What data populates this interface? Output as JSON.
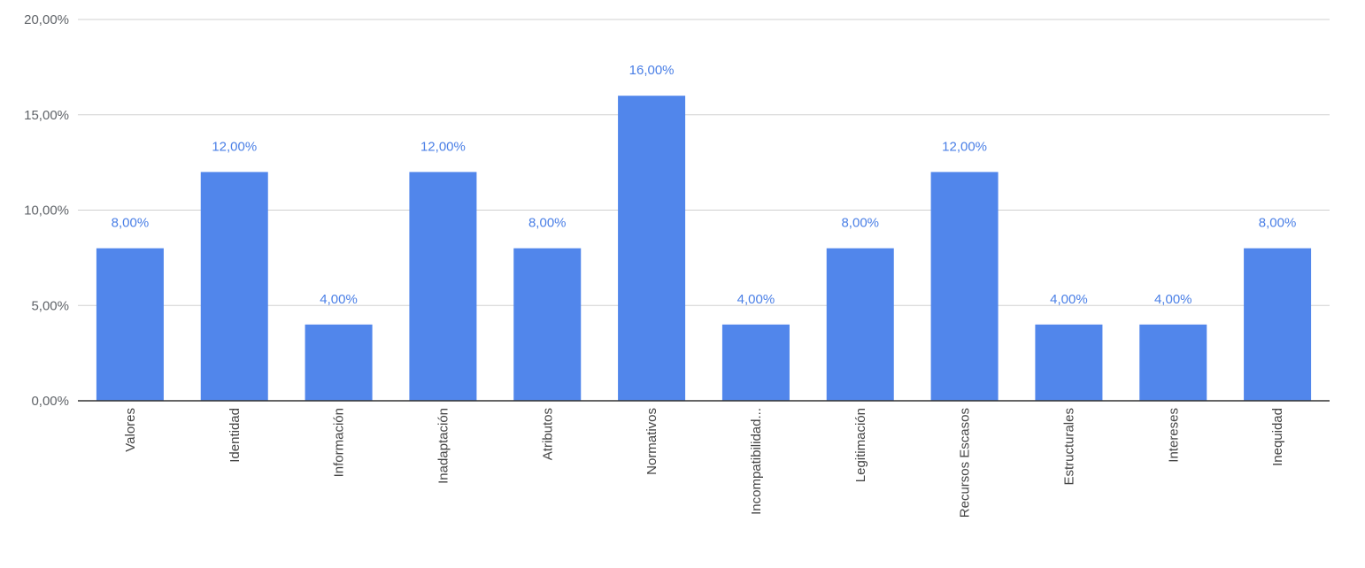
{
  "chart_data": {
    "type": "bar",
    "categories": [
      "Valores",
      "Identidad",
      "Información",
      "Inadaptación",
      "Atributos",
      "Normativos",
      "Incompatibilidad...",
      "Legitimación",
      "Recursos Escasos",
      "Estructurales",
      "Intereses",
      "Inequidad"
    ],
    "series": [
      {
        "values": [
          8,
          12,
          4,
          12,
          8,
          16,
          4,
          8,
          12,
          4,
          4,
          8
        ]
      }
    ],
    "data_labels": [
      "8,00%",
      "12,00%",
      "4,00%",
      "12,00%",
      "8,00%",
      "16,00%",
      "4,00%",
      "8,00%",
      "12,00%",
      "4,00%",
      "4,00%",
      "8,00%"
    ],
    "y_ticks": [
      0,
      5,
      10,
      15,
      20
    ],
    "y_tick_labels": [
      "0,00%",
      "5,00%",
      "10,00%",
      "15,00%",
      "20,00%"
    ],
    "ylim": [
      0,
      20
    ],
    "grid": true,
    "legend": "none",
    "colors": {
      "bar": "#5186eb",
      "data_label": "#4a7fe6",
      "grid": "#d0d0d0",
      "axis": "#333333"
    }
  }
}
